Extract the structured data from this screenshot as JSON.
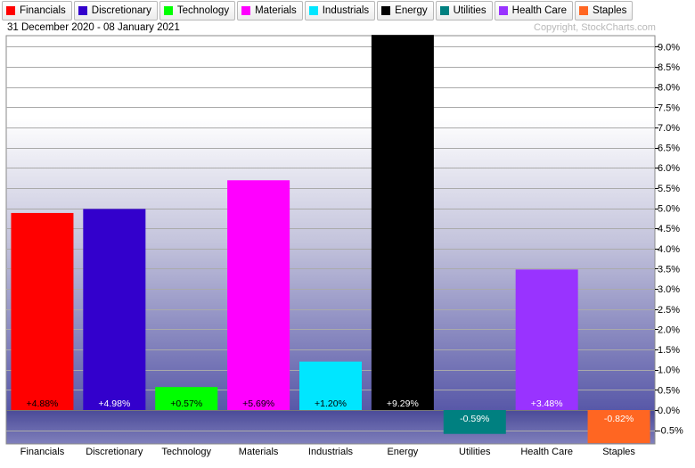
{
  "date_range": "31 December 2020 - 08 January 2021",
  "copyright": "Copyright, StockCharts.com",
  "chart_data": {
    "type": "bar",
    "categories": [
      "Financials",
      "Discretionary",
      "Technology",
      "Materials",
      "Industrials",
      "Energy",
      "Utilities",
      "Health Care",
      "Staples"
    ],
    "values": [
      4.88,
      4.98,
      0.57,
      5.69,
      1.2,
      9.29,
      -0.59,
      3.48,
      -0.82
    ],
    "value_labels": [
      "+4.88%",
      "+4.98%",
      "+0.57%",
      "+5.69%",
      "+1.20%",
      "+9.29%",
      "-0.59%",
      "+3.48%",
      "-0.82%"
    ],
    "colors": [
      "#ff0000",
      "#3300cc",
      "#00ff00",
      "#ff00ff",
      "#00e6ff",
      "#000000",
      "#008080",
      "#9933ff",
      "#ff6622"
    ],
    "value_label_colors": [
      "#000000",
      "#ffffff",
      "#000000",
      "#000000",
      "#000000",
      "#ffffff",
      "#ffffff",
      "#ffffff",
      "#ffffff"
    ],
    "y_ticks": [
      9.0,
      8.5,
      8.0,
      7.5,
      7.0,
      6.5,
      6.0,
      5.5,
      5.0,
      4.5,
      4.0,
      3.5,
      3.0,
      2.5,
      2.0,
      1.5,
      1.0,
      0.5,
      0.0,
      -0.5
    ],
    "y_tick_labels": [
      "9.0%",
      "8.5%",
      "8.0%",
      "7.5%",
      "7.0%",
      "6.5%",
      "6.0%",
      "5.5%",
      "5.0%",
      "4.5%",
      "4.0%",
      "3.5%",
      "3.0%",
      "2.5%",
      "2.0%",
      "1.5%",
      "1.0%",
      "0.5%",
      "0.0%",
      "-0.5%"
    ],
    "ylim": [
      -0.85,
      9.35
    ],
    "yaxis_side": "right",
    "grid": true,
    "legend_position": "top",
    "legend": [
      {
        "label": "Financials",
        "color": "#ff0000"
      },
      {
        "label": "Discretionary",
        "color": "#3300cc"
      },
      {
        "label": "Technology",
        "color": "#00ff00"
      },
      {
        "label": "Materials",
        "color": "#ff00ff"
      },
      {
        "label": "Industrials",
        "color": "#00e6ff"
      },
      {
        "label": "Energy",
        "color": "#000000"
      },
      {
        "label": "Utilities",
        "color": "#008080"
      },
      {
        "label": "Health Care",
        "color": "#9933ff"
      },
      {
        "label": "Staples",
        "color": "#ff6622"
      }
    ]
  }
}
